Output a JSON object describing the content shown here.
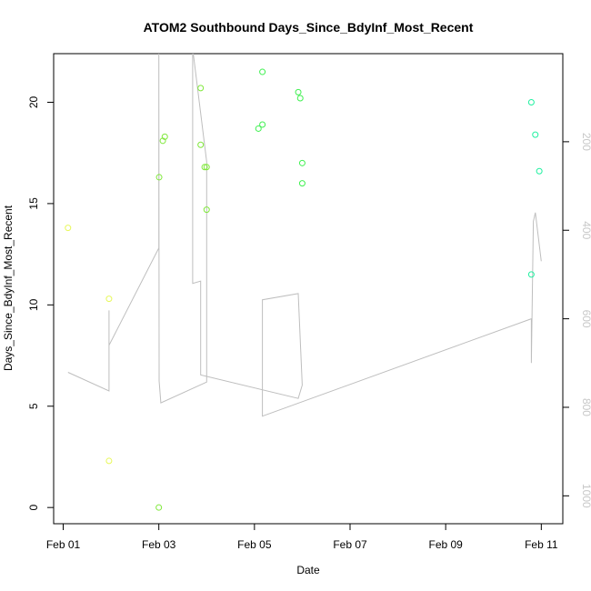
{
  "chart_data": {
    "type": "scatter",
    "title": "ATOM2 Southbound Days_Since_BdyInf_Most_Recent",
    "xlabel": "Date",
    "ylabel": "Days_Since_BdyInf_Most_Recent",
    "xlim": [
      "2024-01-31T19:12",
      "2024-02-11T10:48"
    ],
    "ylim": [
      -0.8,
      22.4
    ],
    "x_ticks": [
      {
        "label": "Feb 01",
        "date": "2024-02-01"
      },
      {
        "label": "Feb 03",
        "date": "2024-02-03"
      },
      {
        "label": "Feb 05",
        "date": "2024-02-05"
      },
      {
        "label": "Feb 07",
        "date": "2024-02-07"
      },
      {
        "label": "Feb 09",
        "date": "2024-02-09"
      },
      {
        "label": "Feb 11",
        "date": "2024-02-11"
      }
    ],
    "y_ticks": [
      0,
      5,
      10,
      15,
      20
    ],
    "y2_ticks": [
      200,
      400,
      600,
      800,
      1000
    ],
    "y2lim": [
      1063,
      1
    ],
    "grid": false,
    "point_color_scale": {
      "low": "#ffff66",
      "mid": "#66ff00",
      "high": "#00ffcc"
    },
    "points": [
      {
        "date": "2024-02-01T02:24",
        "y": 13.8,
        "color": "#e8f85a"
      },
      {
        "date": "2024-02-01T23:00",
        "y": 10.3,
        "color": "#e8f85a"
      },
      {
        "date": "2024-02-01T23:00",
        "y": 2.3,
        "color": "#e8f85a"
      },
      {
        "date": "2024-02-03T00:00",
        "y": 0.0,
        "color": "#7fe83a"
      },
      {
        "date": "2024-02-03T00:10",
        "y": 16.3,
        "color": "#7fe83a"
      },
      {
        "date": "2024-02-03T02:00",
        "y": 18.1,
        "color": "#7fe83a"
      },
      {
        "date": "2024-02-03T03:00",
        "y": 18.3,
        "color": "#7fe83a"
      },
      {
        "date": "2024-02-03T21:00",
        "y": 20.7,
        "color": "#7fe83a"
      },
      {
        "date": "2024-02-03T21:00",
        "y": 17.9,
        "color": "#7fe83a"
      },
      {
        "date": "2024-02-03T23:00",
        "y": 16.8,
        "color": "#7fe83a"
      },
      {
        "date": "2024-02-04T00:00",
        "y": 16.8,
        "color": "#7fe83a"
      },
      {
        "date": "2024-02-04T00:00",
        "y": 14.7,
        "color": "#7fe83a"
      },
      {
        "date": "2024-02-05T02:00",
        "y": 18.7,
        "color": "#3ff050"
      },
      {
        "date": "2024-02-05T04:00",
        "y": 21.5,
        "color": "#3ff050"
      },
      {
        "date": "2024-02-05T04:00",
        "y": 18.9,
        "color": "#3ff050"
      },
      {
        "date": "2024-02-05T22:00",
        "y": 20.5,
        "color": "#3ff050"
      },
      {
        "date": "2024-02-05T23:00",
        "y": 20.2,
        "color": "#3ff050"
      },
      {
        "date": "2024-02-06T00:00",
        "y": 17.0,
        "color": "#3ff050"
      },
      {
        "date": "2024-02-06T00:00",
        "y": 16.0,
        "color": "#3ff050"
      },
      {
        "date": "2024-02-10T19:00",
        "y": 20.0,
        "color": "#20f0a0"
      },
      {
        "date": "2024-02-10T19:00",
        "y": 11.5,
        "color": "#20f0a0"
      },
      {
        "date": "2024-02-10T21:00",
        "y": 18.4,
        "color": "#20f0a0"
      },
      {
        "date": "2024-02-10T23:00",
        "y": 16.6,
        "color": "#20f0a0"
      }
    ],
    "line_series": {
      "color": "#bebebe",
      "axis": "right",
      "values": [
        {
          "date": "2024-02-01T02:24",
          "y2": 721
        },
        {
          "date": "2024-02-01T23:00",
          "y2": 763
        },
        {
          "date": "2024-02-01T23:00",
          "y2": 581
        },
        {
          "date": "2024-02-01T23:00",
          "y2": 660
        },
        {
          "date": "2024-02-03T00:00",
          "y2": 440
        },
        {
          "date": "2024-02-03T00:00",
          "y2": -10
        },
        {
          "date": "2024-02-03T00:10",
          "y2": 740
        },
        {
          "date": "2024-02-03T01:00",
          "y2": 790
        },
        {
          "date": "2024-02-04T00:00",
          "y2": 743
        },
        {
          "date": "2024-02-04T00:00",
          "y2": 245
        },
        {
          "date": "2024-02-03T17:00",
          "y2": -10
        },
        {
          "date": "2024-02-03T17:00",
          "y2": 520
        },
        {
          "date": "2024-02-03T21:00",
          "y2": 515
        },
        {
          "date": "2024-02-03T21:00",
          "y2": 727
        },
        {
          "date": "2024-02-05T22:00",
          "y2": 780
        },
        {
          "date": "2024-02-06T00:00",
          "y2": 750
        },
        {
          "date": "2024-02-05T22:00",
          "y2": 543
        },
        {
          "date": "2024-02-05T04:00",
          "y2": 557
        },
        {
          "date": "2024-02-05T04:00",
          "y2": 820
        },
        {
          "date": "2024-02-10T19:00",
          "y2": 600
        },
        {
          "date": "2024-02-10T19:00",
          "y2": 700
        },
        {
          "date": "2024-02-10T20:00",
          "y2": 380
        },
        {
          "date": "2024-02-10T21:00",
          "y2": 360
        },
        {
          "date": "2024-02-11T00:00",
          "y2": 470
        }
      ]
    }
  }
}
